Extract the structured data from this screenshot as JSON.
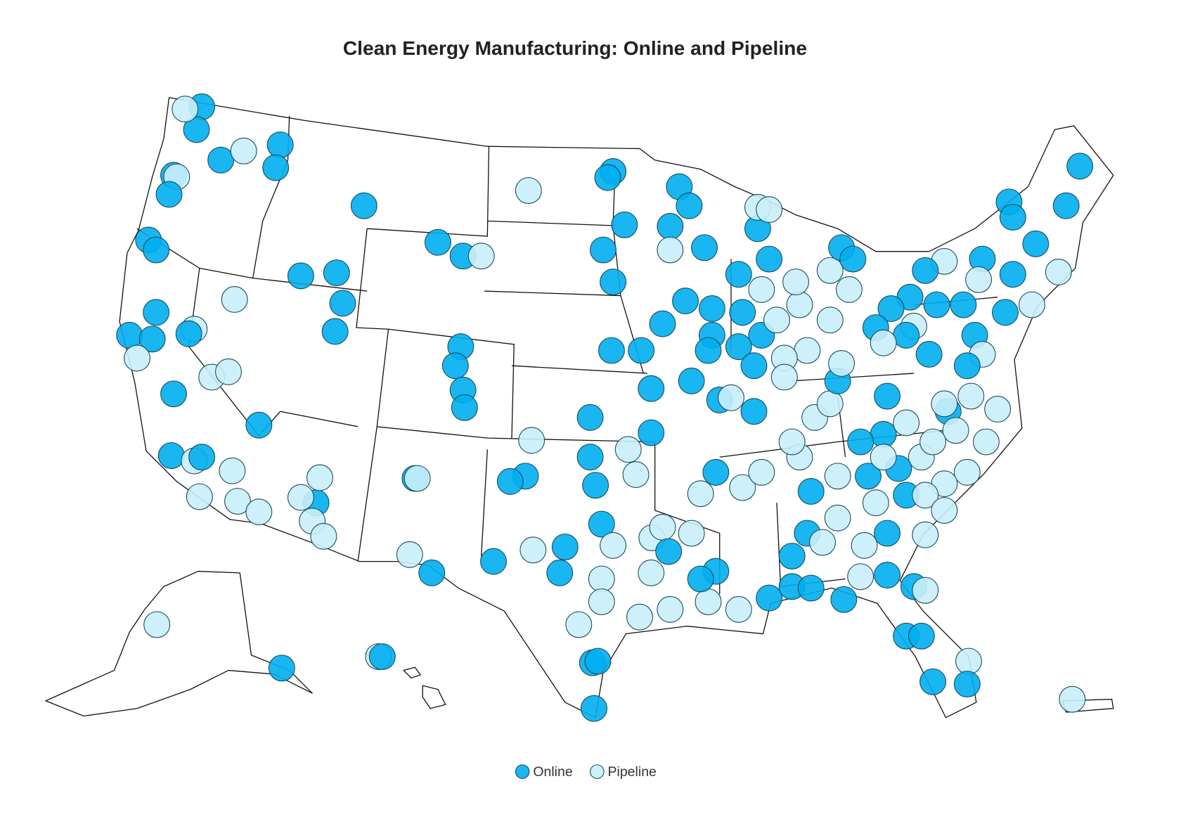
{
  "title": "Clean Energy Manufacturing: Online and Pipeline",
  "legend": [
    {
      "label": "Online",
      "color": "#00aeef"
    },
    {
      "label": "Pipeline",
      "color": "#c9eefa"
    }
  ]
}
